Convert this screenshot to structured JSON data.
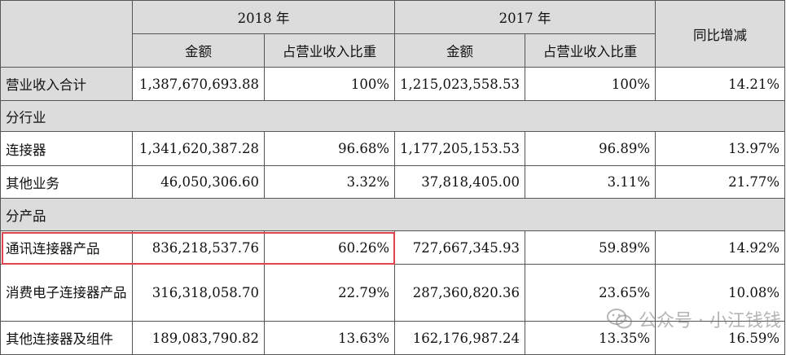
{
  "header": {
    "year_2018": "2018 年",
    "year_2017": "2017 年",
    "yoy": "同比增减",
    "amount": "金额",
    "ratio": "占营业收入比重"
  },
  "total": {
    "label": "营业收入合计",
    "amt_2018": "1,387,670,693.88",
    "ratio_2018": "100%",
    "amt_2017": "1,215,023,558.53",
    "ratio_2017": "100%",
    "yoy": "14.21%"
  },
  "section_industry": "分行业",
  "industry_rows": [
    {
      "label": "连接器",
      "amt_2018": "1,341,620,387.28",
      "ratio_2018": "96.68%",
      "amt_2017": "1,177,205,153.53",
      "ratio_2017": "96.89%",
      "yoy": "13.97%"
    },
    {
      "label": "其他业务",
      "amt_2018": "46,050,306.60",
      "ratio_2018": "3.32%",
      "amt_2017": "37,818,405.00",
      "ratio_2017": "3.11%",
      "yoy": "21.77%"
    }
  ],
  "section_product": "分产品",
  "product_rows": [
    {
      "label": "通讯连接器产品",
      "amt_2018": "836,218,537.76",
      "ratio_2018": "60.26%",
      "amt_2017": "727,667,345.93",
      "ratio_2017": "59.89%",
      "yoy": "14.92%"
    },
    {
      "label": "消费电子连接器产品",
      "amt_2018": "316,318,058.70",
      "ratio_2018": "22.79%",
      "amt_2017": "287,360,820.36",
      "ratio_2017": "23.65%",
      "yoy": "10.08%"
    },
    {
      "label": "其他连接器及组件",
      "amt_2018": "189,083,790.82",
      "ratio_2018": "13.63%",
      "amt_2017": "162,176,987.24",
      "ratio_2017": "13.35%",
      "yoy": "16.59%"
    }
  ],
  "watermark": "公众号 · 小江钱钱"
}
